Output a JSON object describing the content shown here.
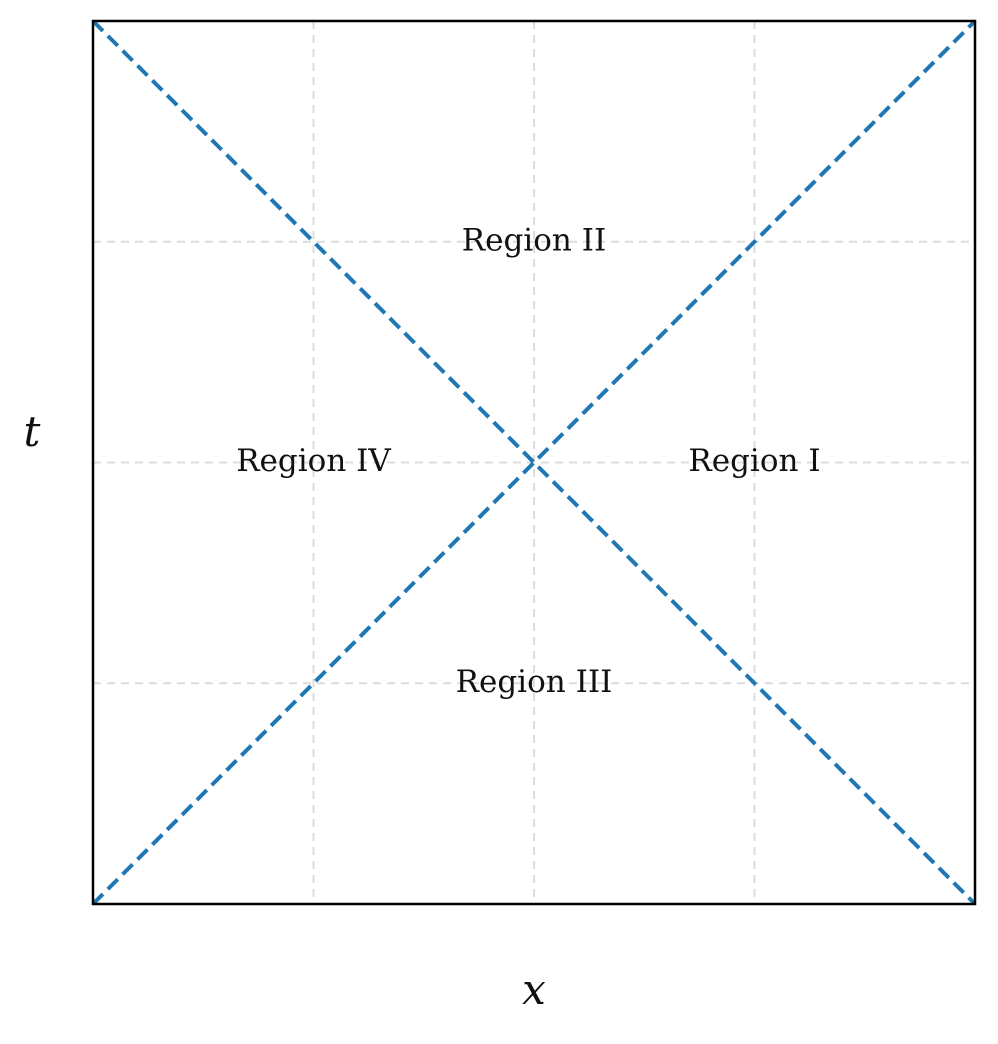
{
  "chart_data": {
    "type": "line",
    "title": "",
    "xlabel": "x",
    "ylabel": "t",
    "xlim": [
      -1,
      1
    ],
    "ylim": [
      -1,
      1
    ],
    "grid": true,
    "grid_x": [
      -0.5,
      0,
      0.5
    ],
    "grid_y": [
      -0.5,
      0,
      0.5
    ],
    "series": [
      {
        "style": "dashed",
        "color": "#1f77b4",
        "points": [
          [
            -1,
            -1
          ],
          [
            1,
            1
          ]
        ]
      },
      {
        "style": "dashed",
        "color": "#1f77b4",
        "points": [
          [
            -1,
            1
          ],
          [
            1,
            -1
          ]
        ]
      }
    ],
    "annotations": [
      {
        "text": "Region I",
        "x": 0.5,
        "y": 0
      },
      {
        "text": "Region II",
        "x": 0,
        "y": 0.5
      },
      {
        "text": "Region III",
        "x": 0,
        "y": -0.5
      },
      {
        "text": "Region IV",
        "x": -0.5,
        "y": 0
      }
    ]
  }
}
